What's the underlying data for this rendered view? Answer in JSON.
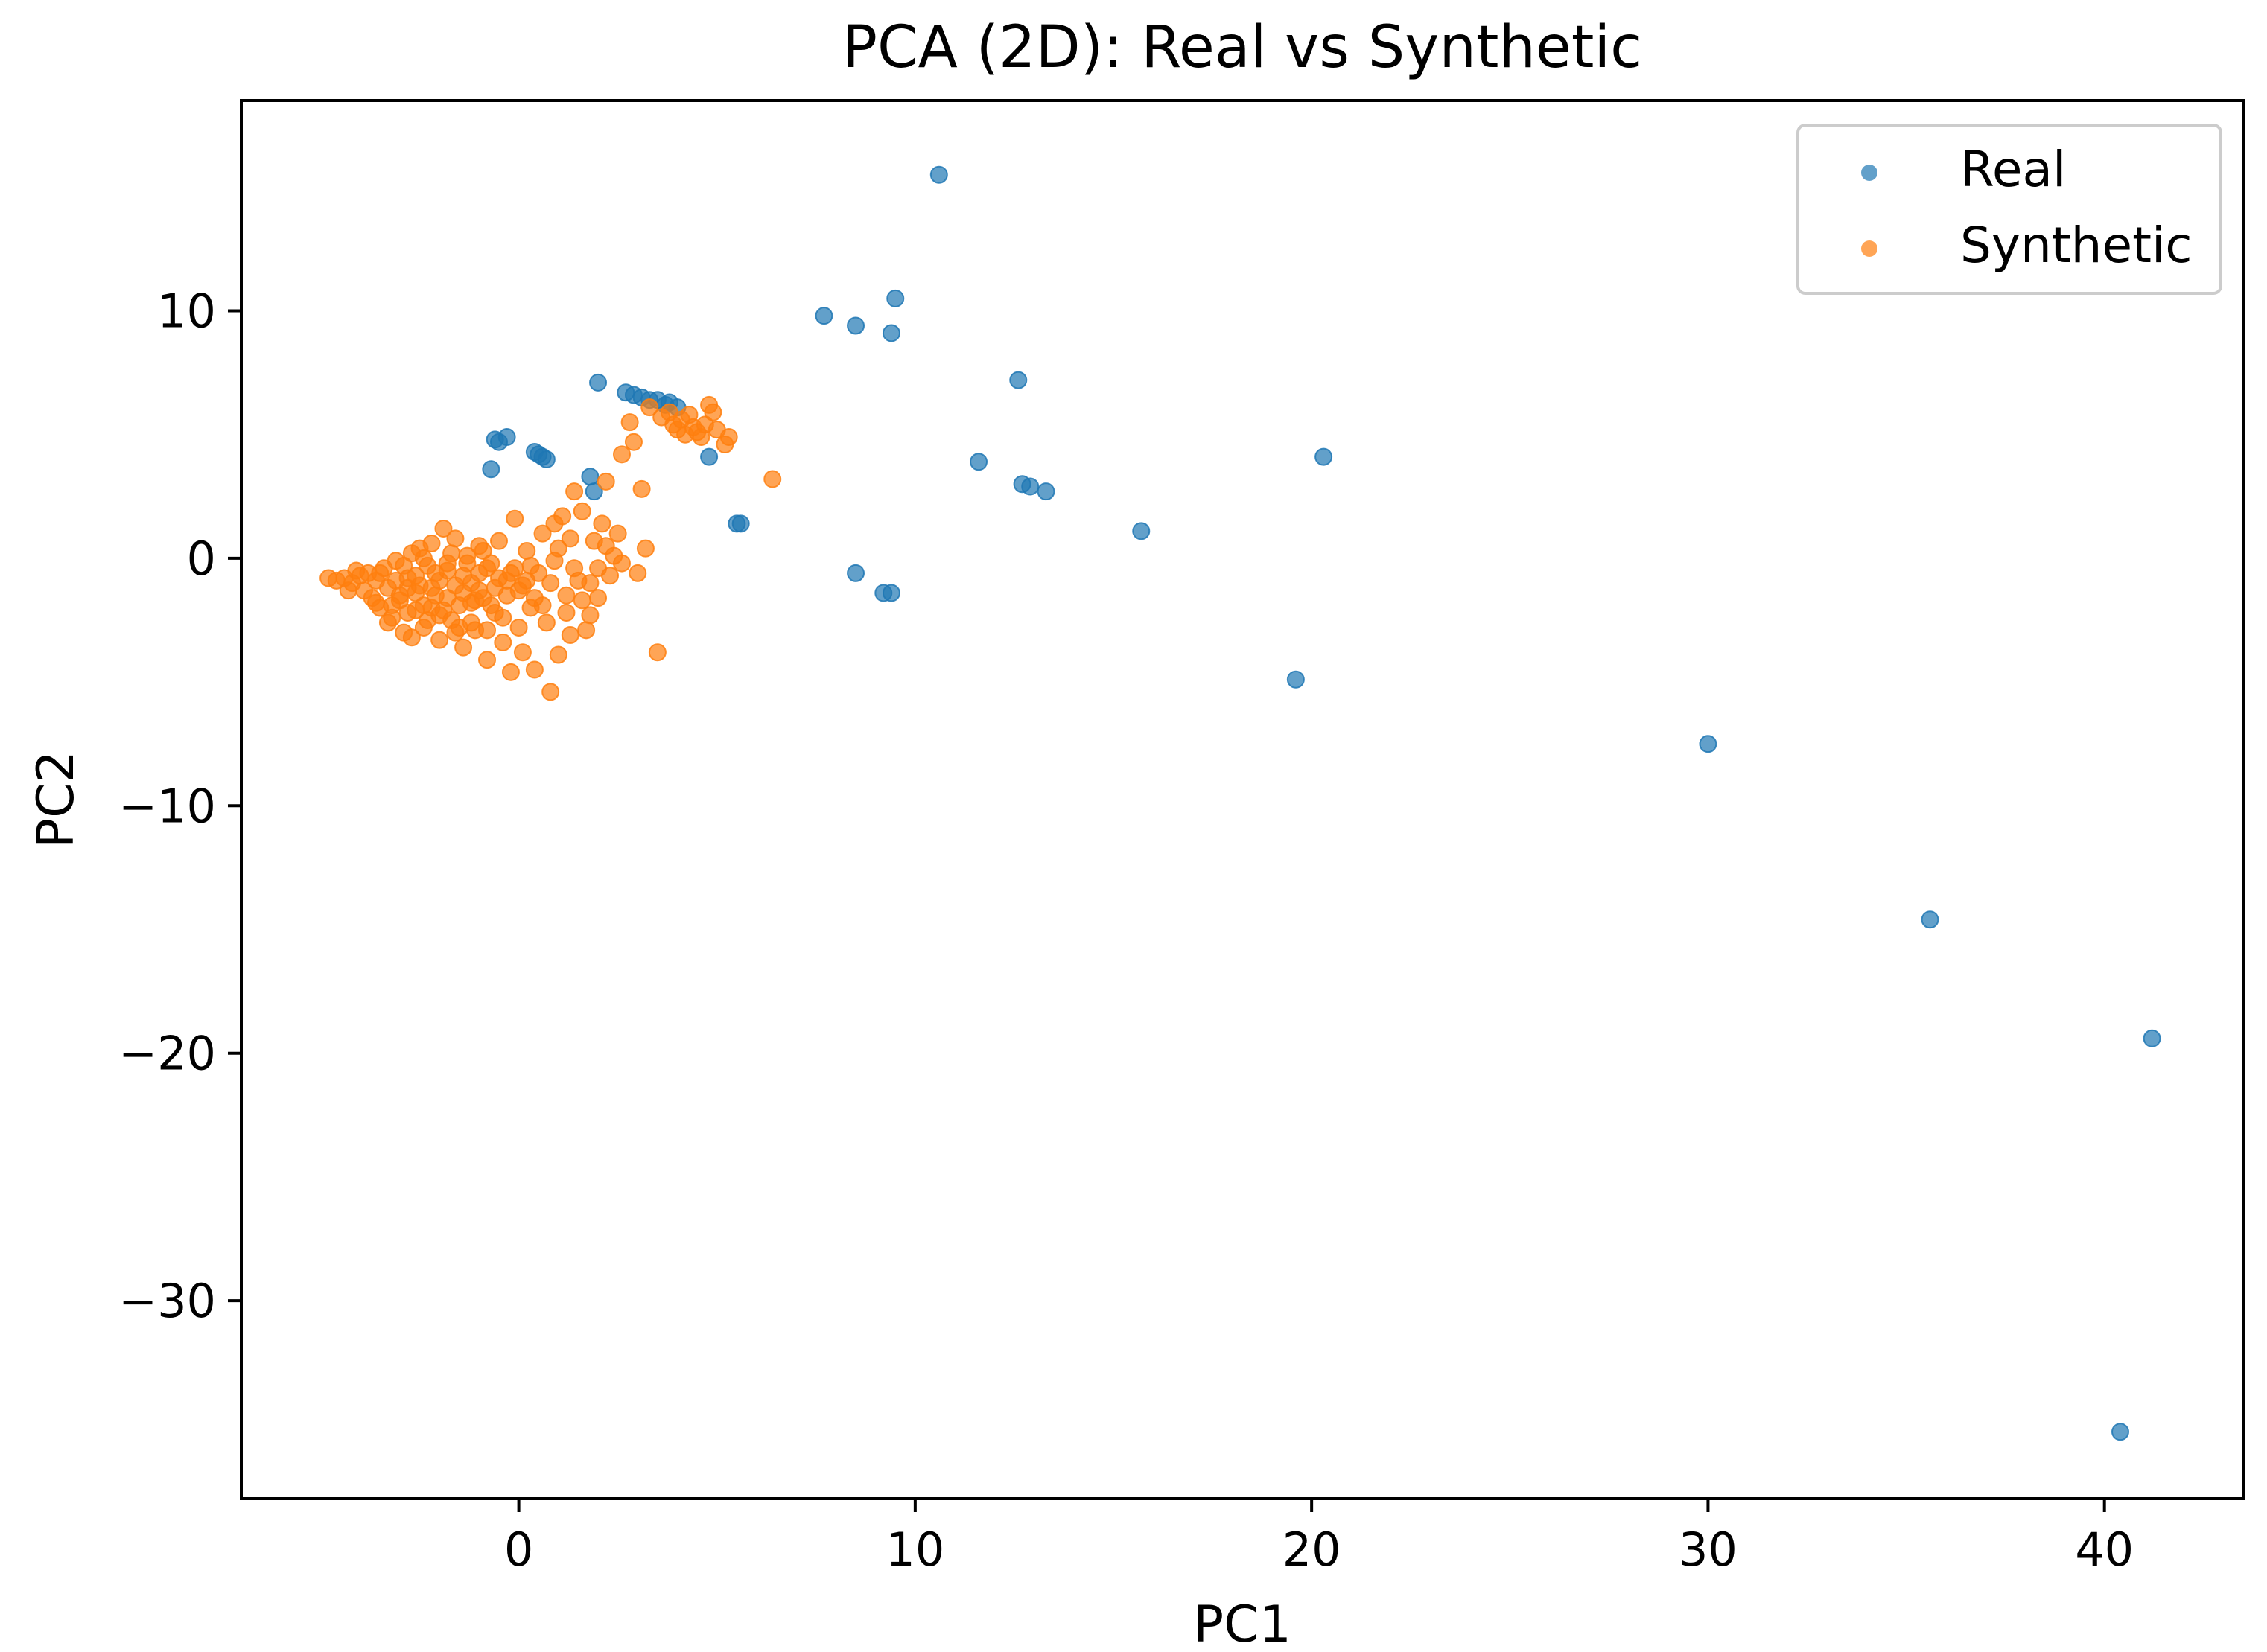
{
  "chart_data": {
    "type": "scatter",
    "title": "PCA (2D): Real vs Synthetic",
    "xlabel": "PC1",
    "ylabel": "PC2",
    "xlim": [
      -7,
      43.5
    ],
    "ylim": [
      -38,
      18.5
    ],
    "xticks": [
      0,
      10,
      20,
      30,
      40
    ],
    "yticks": [
      10,
      0,
      -10,
      -20,
      -30
    ],
    "xtick_labels": [
      "0",
      "10",
      "20",
      "30",
      "40"
    ],
    "ytick_labels": [
      "10",
      "0",
      "−10",
      "−20",
      "−30"
    ],
    "grid": false,
    "legend_position": "top-right",
    "series": [
      {
        "name": "Real",
        "color": "#1f77b4",
        "alpha": 0.7,
        "points": [
          [
            10.6,
            15.5
          ],
          [
            7.7,
            9.8
          ],
          [
            8.5,
            9.4
          ],
          [
            9.5,
            10.5
          ],
          [
            9.4,
            9.1
          ],
          [
            12.6,
            7.2
          ],
          [
            11.6,
            3.9
          ],
          [
            12.7,
            3.0
          ],
          [
            12.9,
            2.9
          ],
          [
            13.3,
            2.7
          ],
          [
            15.7,
            1.1
          ],
          [
            20.3,
            4.1
          ],
          [
            8.5,
            -0.6
          ],
          [
            9.2,
            -1.4
          ],
          [
            9.4,
            -1.4
          ],
          [
            19.6,
            -4.9
          ],
          [
            30.0,
            -7.5
          ],
          [
            35.6,
            -14.6
          ],
          [
            41.2,
            -19.4
          ],
          [
            40.4,
            -35.3
          ],
          [
            2.0,
            7.1
          ],
          [
            2.7,
            6.7
          ],
          [
            2.9,
            6.6
          ],
          [
            3.1,
            6.5
          ],
          [
            3.3,
            6.4
          ],
          [
            3.5,
            6.4
          ],
          [
            3.8,
            6.3
          ],
          [
            4.0,
            6.1
          ],
          [
            3.7,
            6.2
          ],
          [
            4.8,
            4.1
          ],
          [
            5.5,
            1.4
          ],
          [
            5.6,
            1.4
          ],
          [
            -0.6,
            4.8
          ],
          [
            -0.5,
            4.7
          ],
          [
            -0.3,
            4.9
          ],
          [
            0.4,
            4.3
          ],
          [
            0.5,
            4.2
          ],
          [
            0.6,
            4.1
          ],
          [
            0.7,
            4.0
          ],
          [
            -0.7,
            3.6
          ],
          [
            1.8,
            3.3
          ],
          [
            1.9,
            2.7
          ]
        ]
      },
      {
        "name": "Synthetic",
        "color": "#ff7f0e",
        "alpha": 0.7,
        "points": [
          [
            -4.8,
            -0.8
          ],
          [
            -4.6,
            -0.9
          ],
          [
            -4.4,
            -0.8
          ],
          [
            -4.2,
            -1.0
          ],
          [
            -4.0,
            -0.7
          ],
          [
            -3.9,
            -1.3
          ],
          [
            -3.8,
            -0.6
          ],
          [
            -3.7,
            -1.6
          ],
          [
            -3.6,
            -0.9
          ],
          [
            -3.5,
            -2.0
          ],
          [
            -3.4,
            -0.4
          ],
          [
            -3.3,
            -1.2
          ],
          [
            -3.2,
            -2.4
          ],
          [
            -3.1,
            -0.1
          ],
          [
            -3.0,
            -1.7
          ],
          [
            -2.9,
            -3.0
          ],
          [
            -2.8,
            -0.8
          ],
          [
            -2.7,
            0.2
          ],
          [
            -2.6,
            -2.1
          ],
          [
            -2.5,
            -1.1
          ],
          [
            -2.4,
            -2.8
          ],
          [
            -2.3,
            -0.3
          ],
          [
            -2.2,
            0.6
          ],
          [
            -2.1,
            -1.5
          ],
          [
            -2.0,
            -3.3
          ],
          [
            -1.9,
            1.2
          ],
          [
            -1.8,
            -0.5
          ],
          [
            -1.7,
            -2.5
          ],
          [
            -1.6,
            0.8
          ],
          [
            -1.5,
            -1.9
          ],
          [
            -1.4,
            -3.6
          ],
          [
            -1.3,
            0.1
          ],
          [
            -1.2,
            -1.0
          ],
          [
            -1.1,
            -2.9
          ],
          [
            -1.0,
            0.5
          ],
          [
            -0.9,
            -1.6
          ],
          [
            -0.8,
            -4.1
          ],
          [
            -0.7,
            -0.2
          ],
          [
            -0.6,
            -2.2
          ],
          [
            -0.5,
            0.7
          ],
          [
            -0.4,
            -3.4
          ],
          [
            -0.3,
            -0.9
          ],
          [
            -0.2,
            -4.6
          ],
          [
            -0.1,
            1.6
          ],
          [
            0.0,
            -1.3
          ],
          [
            0.1,
            -3.8
          ],
          [
            0.2,
            0.3
          ],
          [
            0.3,
            -2.0
          ],
          [
            0.4,
            -4.5
          ],
          [
            0.5,
            -0.6
          ],
          [
            0.6,
            1.0
          ],
          [
            0.7,
            -2.6
          ],
          [
            0.8,
            -5.4
          ],
          [
            0.9,
            -0.1
          ],
          [
            1.0,
            -3.9
          ],
          [
            1.1,
            1.7
          ],
          [
            1.2,
            -1.5
          ],
          [
            1.3,
            -3.1
          ],
          [
            1.4,
            2.7
          ],
          [
            1.5,
            -0.9
          ],
          [
            1.6,
            1.9
          ],
          [
            1.7,
            -2.9
          ],
          [
            1.8,
            -2.3
          ],
          [
            1.9,
            0.7
          ],
          [
            2.0,
            -1.6
          ],
          [
            2.1,
            1.4
          ],
          [
            2.2,
            3.1
          ],
          [
            2.3,
            -0.7
          ],
          [
            2.5,
            1.0
          ],
          [
            2.6,
            4.2
          ],
          [
            2.8,
            5.5
          ],
          [
            2.9,
            4.7
          ],
          [
            3.0,
            -0.6
          ],
          [
            3.1,
            2.8
          ],
          [
            3.2,
            0.4
          ],
          [
            3.3,
            6.1
          ],
          [
            3.5,
            -3.8
          ],
          [
            3.6,
            5.7
          ],
          [
            3.8,
            5.9
          ],
          [
            3.9,
            5.4
          ],
          [
            4.0,
            5.2
          ],
          [
            4.1,
            5.6
          ],
          [
            4.2,
            5.0
          ],
          [
            4.3,
            5.8
          ],
          [
            4.4,
            5.3
          ],
          [
            4.5,
            5.1
          ],
          [
            4.6,
            4.9
          ],
          [
            4.7,
            5.4
          ],
          [
            4.8,
            6.2
          ],
          [
            4.9,
            5.9
          ],
          [
            5.0,
            5.2
          ],
          [
            5.2,
            4.6
          ],
          [
            5.3,
            4.9
          ],
          [
            6.4,
            3.2
          ],
          [
            -2.6,
            -1.4
          ],
          [
            -2.4,
            -1.9
          ],
          [
            -2.2,
            -1.2
          ],
          [
            -2.0,
            -0.9
          ],
          [
            -1.8,
            -1.6
          ],
          [
            -1.6,
            -1.1
          ],
          [
            -1.4,
            -0.7
          ],
          [
            -1.2,
            -1.8
          ],
          [
            -1.0,
            -1.3
          ],
          [
            -0.8,
            -0.4
          ],
          [
            -2.8,
            -2.2
          ],
          [
            -3.0,
            -1.5
          ],
          [
            -2.9,
            -0.3
          ],
          [
            -2.5,
            0.4
          ],
          [
            -2.3,
            -2.5
          ],
          [
            -2.1,
            -0.6
          ],
          [
            -1.9,
            -2.1
          ],
          [
            -1.7,
            0.2
          ],
          [
            -1.5,
            -2.8
          ],
          [
            -1.3,
            -0.2
          ],
          [
            -1.1,
            -1.7
          ],
          [
            -0.9,
            0.3
          ],
          [
            -0.7,
            -1.9
          ],
          [
            -0.5,
            -0.8
          ],
          [
            -0.3,
            -1.5
          ],
          [
            -0.1,
            -0.4
          ],
          [
            0.1,
            -1.1
          ],
          [
            0.3,
            -0.3
          ],
          [
            -3.6,
            -1.8
          ],
          [
            -3.3,
            -2.6
          ],
          [
            -3.1,
            -0.9
          ],
          [
            -2.7,
            -3.2
          ],
          [
            -2.0,
            -2.3
          ],
          [
            -1.6,
            -3.0
          ],
          [
            -1.2,
            -2.6
          ],
          [
            -0.8,
            -2.9
          ],
          [
            -0.4,
            -2.4
          ],
          [
            0.0,
            -2.8
          ],
          [
            0.4,
            -1.6
          ],
          [
            0.8,
            -1.0
          ],
          [
            1.2,
            -2.2
          ],
          [
            1.6,
            -1.7
          ],
          [
            2.0,
            -0.4
          ],
          [
            2.4,
            0.1
          ],
          [
            -4.3,
            -1.3
          ],
          [
            -4.1,
            -0.5
          ],
          [
            -3.5,
            -0.6
          ],
          [
            -3.2,
            -1.9
          ],
          [
            -2.8,
            -1.2
          ],
          [
            -2.6,
            -0.7
          ],
          [
            -2.4,
            0.0
          ],
          [
            -2.2,
            -2.0
          ],
          [
            -1.8,
            -0.2
          ],
          [
            -1.4,
            -1.4
          ],
          [
            -1.0,
            -0.6
          ],
          [
            -0.6,
            -1.2
          ],
          [
            -0.2,
            -0.6
          ],
          [
            0.2,
            -0.9
          ],
          [
            0.6,
            -1.9
          ],
          [
            1.0,
            0.4
          ],
          [
            1.4,
            -0.4
          ],
          [
            1.8,
            -1.0
          ],
          [
            2.2,
            0.5
          ],
          [
            2.6,
            -0.2
          ],
          [
            1.3,
            0.8
          ],
          [
            0.9,
            1.4
          ]
        ]
      }
    ]
  }
}
